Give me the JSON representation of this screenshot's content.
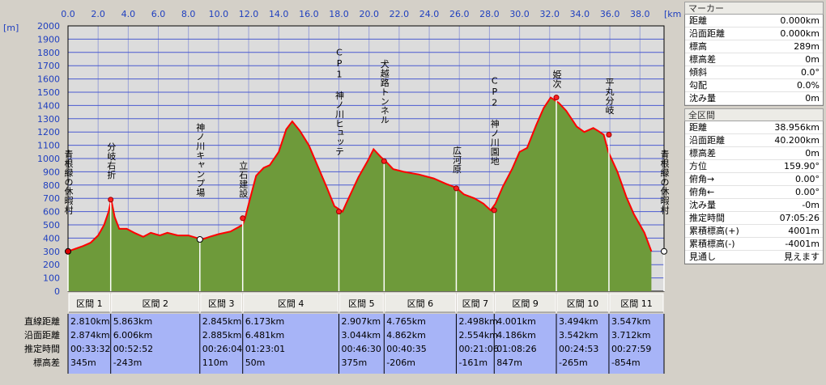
{
  "chart_data": {
    "type": "area",
    "x_unit": "[km]",
    "y_unit": "[m]",
    "xlim": [
      0,
      39.6
    ],
    "ylim": [
      0,
      2000
    ],
    "x_ticks": [
      "0.0",
      "2.0",
      "4.0",
      "6.0",
      "8.0",
      "10.0",
      "12.0",
      "14.0",
      "16.0",
      "18.0",
      "20.0",
      "22.0",
      "24.0",
      "26.0",
      "28.0",
      "30.0",
      "32.0",
      "34.0",
      "36.0",
      "38.0"
    ],
    "y_ticks": [
      "0",
      "100",
      "200",
      "300",
      "400",
      "500",
      "600",
      "700",
      "800",
      "900",
      "1000",
      "1100",
      "1200",
      "1300",
      "1400",
      "1500",
      "1600",
      "1700",
      "1800",
      "1900",
      "2000"
    ],
    "grid": true,
    "profile": [
      [
        0,
        300
      ],
      [
        0.5,
        320
      ],
      [
        1.0,
        340
      ],
      [
        1.5,
        365
      ],
      [
        2.0,
        420
      ],
      [
        2.4,
        500
      ],
      [
        2.7,
        600
      ],
      [
        2.87,
        690
      ],
      [
        3.1,
        560
      ],
      [
        3.4,
        470
      ],
      [
        3.9,
        470
      ],
      [
        4.4,
        440
      ],
      [
        5.0,
        410
      ],
      [
        5.5,
        440
      ],
      [
        6.1,
        420
      ],
      [
        6.6,
        440
      ],
      [
        7.3,
        420
      ],
      [
        8.0,
        420
      ],
      [
        8.6,
        400
      ],
      [
        8.9,
        390
      ],
      [
        9.4,
        410
      ],
      [
        10.0,
        430
      ],
      [
        10.8,
        450
      ],
      [
        11.6,
        500
      ],
      [
        11.76,
        550
      ],
      [
        12.1,
        700
      ],
      [
        12.5,
        870
      ],
      [
        13.0,
        930
      ],
      [
        13.4,
        950
      ],
      [
        14.0,
        1050
      ],
      [
        14.5,
        1220
      ],
      [
        14.9,
        1280
      ],
      [
        15.4,
        1210
      ],
      [
        16.0,
        1100
      ],
      [
        16.6,
        940
      ],
      [
        17.2,
        780
      ],
      [
        17.7,
        640
      ],
      [
        18.24,
        600
      ],
      [
        18.6,
        690
      ],
      [
        19.3,
        860
      ],
      [
        19.9,
        980
      ],
      [
        20.3,
        1070
      ],
      [
        20.8,
        1010
      ],
      [
        21.1,
        980
      ],
      [
        21.6,
        920
      ],
      [
        22.3,
        900
      ],
      [
        23.3,
        880
      ],
      [
        24.3,
        850
      ],
      [
        25.1,
        810
      ],
      [
        25.8,
        780
      ],
      [
        26.3,
        730
      ],
      [
        27.0,
        700
      ],
      [
        27.6,
        660
      ],
      [
        28.08,
        610
      ],
      [
        28.4,
        660
      ],
      [
        28.9,
        790
      ],
      [
        29.5,
        920
      ],
      [
        30.0,
        1050
      ],
      [
        30.5,
        1080
      ],
      [
        31.1,
        1250
      ],
      [
        31.6,
        1380
      ],
      [
        32.07,
        1460
      ],
      [
        32.6,
        1420
      ],
      [
        33.1,
        1360
      ],
      [
        33.8,
        1240
      ],
      [
        34.3,
        1200
      ],
      [
        34.9,
        1230
      ],
      [
        35.2,
        1210
      ],
      [
        35.59,
        1180
      ],
      [
        35.9,
        1050
      ],
      [
        36.5,
        900
      ],
      [
        37.1,
        710
      ],
      [
        37.6,
        580
      ],
      [
        38.3,
        440
      ],
      [
        38.76,
        300
      ]
    ],
    "waypoints": [
      {
        "km": 0.0,
        "elev": 300,
        "label": "青根緑の休暇村",
        "end": "start"
      },
      {
        "km": 2.874,
        "elev": 690,
        "label": "分岐右折"
      },
      {
        "km": 8.88,
        "elev": 390,
        "label": "神ノ川キャンプ場",
        "end": "hollow"
      },
      {
        "km": 11.765,
        "elev": 550,
        "label": "立石建設"
      },
      {
        "km": 18.246,
        "elev": 600,
        "label": "CP1 神ノ川ヒュッテ"
      },
      {
        "km": 21.29,
        "elev": 980,
        "label": "犬越路トンネル"
      },
      {
        "km": 26.152,
        "elev": 775,
        "label": "広河原"
      },
      {
        "km": 28.706,
        "elev": 610,
        "label": "CP2 神ノ川園地"
      },
      {
        "km": 32.892,
        "elev": 1460,
        "label": "姫次"
      },
      {
        "km": 36.434,
        "elev": 1180,
        "label": "平丸分岐"
      },
      {
        "km": 40.146,
        "elev": 300,
        "label": "青根緑の休暇村",
        "end": "hollow"
      }
    ],
    "colors": {
      "plot_bg": "#dcdcdc",
      "grid": "#4a5ad0",
      "area": "#6e9a3a",
      "line": "#ff0000",
      "axis_text": "#1f3fbf",
      "table_bg": "#a7b4f7"
    }
  },
  "segments_table": {
    "row_labels": [
      "直線距離",
      "沿面距離",
      "推定時間",
      "標高差"
    ],
    "segments": [
      {
        "name": "区間 1",
        "values": [
          "2.810km",
          "2.874km",
          "00:33:32",
          "345m"
        ]
      },
      {
        "name": "区間 2",
        "values": [
          "5.863km",
          "6.006km",
          "00:52:52",
          "-243m"
        ]
      },
      {
        "name": "区間 3",
        "values": [
          "2.845km",
          "2.885km",
          "00:26:04",
          "110m"
        ]
      },
      {
        "name": "区間 4",
        "values": [
          "6.173km",
          "6.481km",
          "01:23:01",
          "50m"
        ]
      },
      {
        "name": "区間 5",
        "values": [
          "2.907km",
          "3.044km",
          "00:46:30",
          "375m"
        ]
      },
      {
        "name": "区間 6",
        "values": [
          "4.765km",
          "4.862km",
          "00:40:35",
          "-206m"
        ]
      },
      {
        "name": "区間 7",
        "values": [
          "2.498km",
          "2.554km",
          "00:21:06",
          "-161m"
        ]
      },
      {
        "name": "区間 9",
        "values": [
          "4.001km",
          "4.186km",
          "01:08:26",
          "847m"
        ]
      },
      {
        "name": "区間 10",
        "values": [
          "3.494km",
          "3.542km",
          "00:24:53",
          "-265m"
        ]
      },
      {
        "name": "区間 11",
        "values": [
          "3.547km",
          "3.712km",
          "00:27:59",
          "-854m"
        ]
      }
    ]
  },
  "panel": {
    "marker": {
      "title": "マーカー",
      "rows": [
        {
          "key": "距離",
          "value": "0.000km"
        },
        {
          "key": "沿面距離",
          "value": "0.000km"
        },
        {
          "key": "標高",
          "value": "289m"
        },
        {
          "key": "標高差",
          "value": "0m"
        },
        {
          "key": "傾斜",
          "value": "0.0°"
        },
        {
          "key": "勾配",
          "value": "0.0%"
        },
        {
          "key": "沈み量",
          "value": "0m"
        }
      ]
    },
    "total": {
      "title": "全区間",
      "rows": [
        {
          "key": "距離",
          "value": "38.956km"
        },
        {
          "key": "沿面距離",
          "value": "40.200km"
        },
        {
          "key": "標高差",
          "value": "0m"
        },
        {
          "key": "方位",
          "value": "159.90°"
        },
        {
          "key": "俯角→",
          "value": "0.00°"
        },
        {
          "key": "俯角←",
          "value": "0.00°"
        },
        {
          "key": "沈み量",
          "value": "-0m"
        },
        {
          "key": "推定時間",
          "value": "07:05:26"
        },
        {
          "key": "累積標高(+)",
          "value": "4001m"
        },
        {
          "key": "累積標高(-)",
          "value": "-4001m"
        },
        {
          "key": "見通し",
          "value": "見えます"
        }
      ]
    }
  }
}
